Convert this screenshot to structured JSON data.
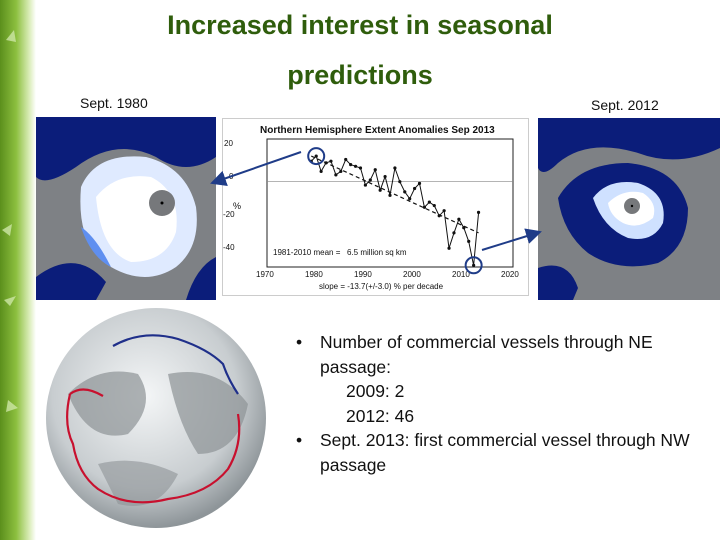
{
  "slide": {
    "title_line1": "Increased interest in seasonal",
    "title_line2": "predictions",
    "caption_left": "Sept. 1980",
    "caption_right": "Sept. 2012",
    "accent_green": "#2f5d0c"
  },
  "chart": {
    "title": "Northern Hemisphere Extent Anomalies Sep 2013",
    "y_ticks": [
      "20",
      "0",
      "-20",
      "-40"
    ],
    "x_ticks": [
      "1970",
      "1980",
      "1990",
      "2000",
      "2010",
      "2020"
    ],
    "ylabel": "%",
    "mean_text": "1981-2010 mean =",
    "mean_value": "6.5 million sq km",
    "slope_text": "slope = -13.7(+/-3.0) % per decade"
  },
  "chart_data": {
    "type": "line",
    "title": "Northern Hemisphere Extent Anomalies Sep 2013",
    "xlabel": "",
    "ylabel": "%",
    "xlim": [
      1970,
      2020
    ],
    "ylim": [
      -50,
      25
    ],
    "series": [
      {
        "name": "",
        "x": [
          1979,
          1980,
          1981,
          1982,
          1983,
          1984,
          1985,
          1986,
          1987,
          1988,
          1989,
          1990,
          1991,
          1992,
          1993,
          1994,
          1995,
          1996,
          1997,
          1998,
          1999,
          2000,
          2001,
          2002,
          2003,
          2004,
          2005,
          2006,
          2007,
          2008,
          2009,
          2010,
          2011,
          2012,
          2013
        ],
        "values": [
          12,
          15,
          6,
          11,
          12,
          4,
          6,
          13,
          10,
          9,
          8,
          -2,
          1,
          7,
          -5,
          3,
          -8,
          8,
          0,
          -6,
          -10,
          -4,
          -1,
          -15,
          -12,
          -14,
          -20,
          -17,
          -39,
          -30,
          -22,
          -27,
          -35,
          -49,
          -18
        ]
      }
    ],
    "trend": {
      "x": [
        1979,
        2013
      ],
      "values": [
        15,
        -30
      ]
    }
  },
  "bullets": {
    "b1": "Number of commercial vessels through NE passage:",
    "b1_sub1": "2009: 2",
    "b1_sub2": "2012: 46",
    "b2": "Sept. 2013: first commercial vessel through NW passage",
    "bullet_char": "•"
  }
}
